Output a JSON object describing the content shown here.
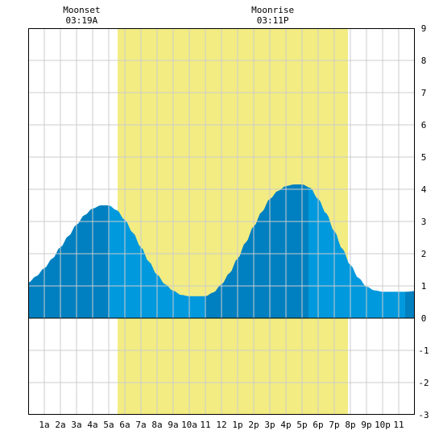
{
  "chart_data": {
    "type": "area",
    "title": "",
    "xlabel": "",
    "ylabel": "",
    "xlim": [
      0,
      24
    ],
    "ylim": [
      -3,
      9
    ],
    "grid": true,
    "x_ticks": [
      {
        "x": 1,
        "label": "1a"
      },
      {
        "x": 2,
        "label": "2a"
      },
      {
        "x": 3,
        "label": "3a"
      },
      {
        "x": 4,
        "label": "4a"
      },
      {
        "x": 5,
        "label": "5a"
      },
      {
        "x": 6,
        "label": "6a"
      },
      {
        "x": 7,
        "label": "7a"
      },
      {
        "x": 8,
        "label": "8a"
      },
      {
        "x": 9,
        "label": "9a"
      },
      {
        "x": 10,
        "label": "10a"
      },
      {
        "x": 11,
        "label": "11"
      },
      {
        "x": 12,
        "label": "12"
      },
      {
        "x": 13,
        "label": "1p"
      },
      {
        "x": 14,
        "label": "2p"
      },
      {
        "x": 15,
        "label": "3p"
      },
      {
        "x": 16,
        "label": "4p"
      },
      {
        "x": 17,
        "label": "5p"
      },
      {
        "x": 18,
        "label": "6p"
      },
      {
        "x": 19,
        "label": "7p"
      },
      {
        "x": 20,
        "label": "8p"
      },
      {
        "x": 21,
        "label": "9p"
      },
      {
        "x": 22,
        "label": "10p"
      },
      {
        "x": 23,
        "label": "11"
      }
    ],
    "y_ticks": [
      -3,
      -2,
      -1,
      0,
      1,
      2,
      3,
      4,
      5,
      6,
      7,
      8,
      9
    ],
    "daylight": {
      "start": 5.55,
      "end": 19.85
    },
    "annotations": [
      {
        "kind": "moonset",
        "title": "Moonset",
        "time": "03:19A",
        "x": 3.32
      },
      {
        "kind": "moonrise",
        "title": "Moonrise",
        "time": "03:11P",
        "x": 15.18
      }
    ],
    "tide_extremes": [
      {
        "x": 5.0,
        "y": 3.5
      },
      {
        "x": 11.0,
        "y": 0.68
      },
      {
        "x": 17.4,
        "y": 4.15
      },
      {
        "x": 23.4,
        "y": 0.82
      }
    ],
    "series": [
      {
        "x": [
          0,
          0.5,
          1,
          1.5,
          2,
          2.5,
          3,
          3.5,
          4,
          4.5,
          5,
          5.5,
          6,
          6.5,
          7,
          7.5,
          8,
          8.5,
          9,
          9.5,
          10,
          10.5,
          11,
          11.5,
          12,
          12.5,
          13,
          13.5,
          14,
          14.5,
          15,
          15.5,
          16,
          16.5,
          17,
          17.5,
          18,
          18.5,
          19,
          19.5,
          20,
          20.5,
          21,
          21.5,
          22,
          22.5,
          23,
          23.5,
          24
        ],
        "values": [
          1.1,
          1.3,
          1.55,
          1.85,
          2.2,
          2.55,
          2.9,
          3.2,
          3.4,
          3.5,
          3.5,
          3.35,
          3.05,
          2.65,
          2.2,
          1.75,
          1.35,
          1.05,
          0.85,
          0.72,
          0.68,
          0.68,
          0.68,
          0.8,
          1.05,
          1.4,
          1.85,
          2.35,
          2.85,
          3.3,
          3.7,
          3.95,
          4.1,
          4.15,
          4.15,
          4.05,
          3.7,
          3.25,
          2.7,
          2.15,
          1.65,
          1.25,
          0.98,
          0.86,
          0.82,
          0.82,
          0.82,
          0.82,
          0.84
        ]
      }
    ],
    "colors": {
      "daylight": "#f2ec82",
      "tide_fill_falling": "#0099dd",
      "tide_fill_rising": "#0080c0",
      "grid": "#cccccc",
      "frame": "#000000",
      "zero_line": "#000000",
      "background": "#ffffff"
    }
  }
}
